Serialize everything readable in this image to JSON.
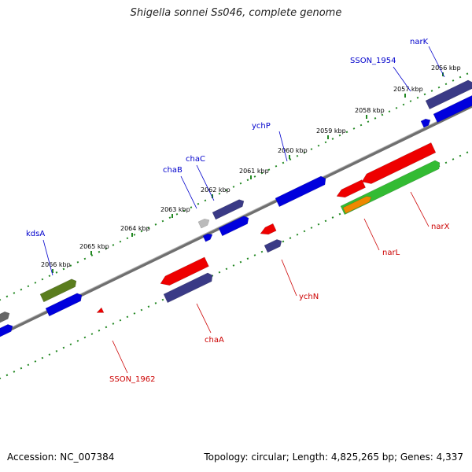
{
  "title": "Shigella sonnei Ss046, complete genome",
  "footer": {
    "accession": "Accession: NC_007384",
    "summary": "Topology: circular; Length: 4,825,265 bp; Genes: 4,337"
  },
  "scale_ticks": [
    "2056 kbp",
    "2057 kbp",
    "2058 kbp",
    "2059 kbp",
    "2060 kbp",
    "2061 kbp",
    "2062 kbp",
    "2063 kbp",
    "2064 kbp",
    "2065 kbp",
    "2066 kbp"
  ],
  "gene_labels": {
    "narK": "narK",
    "SSON_1954": "SSON_1954",
    "ychP": "ychP",
    "chaC": "chaC",
    "chaB": "chaB",
    "kdsA": "kdsA",
    "narX": "narX",
    "narL": "narL",
    "ychN": "ychN",
    "chaA": "chaA",
    "SSON_1962": "SSON_1962"
  },
  "colors": {
    "forward_cds": "#0000dd",
    "forward_cds_dark": "#3a3a86",
    "reverse_cds": "#ee0000",
    "green_feature": "#33bb33",
    "olive_feature": "#5a7d1e",
    "orange_feature": "#ee8800",
    "grey_feature": "#bbbbbb",
    "tick_green": "#228822",
    "backbone": "#777777"
  }
}
